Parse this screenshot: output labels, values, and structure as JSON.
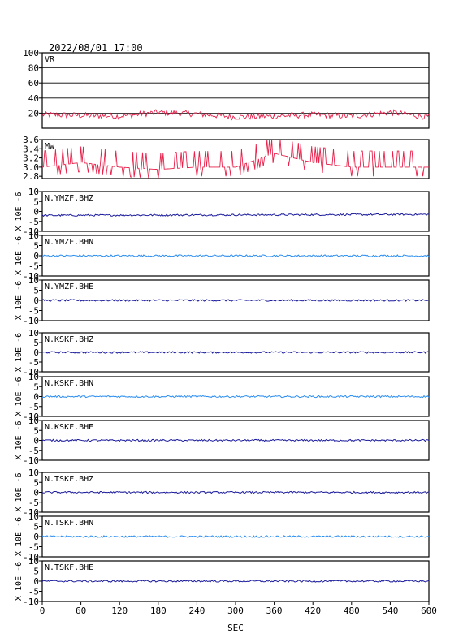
{
  "title": "2022/08/01 17:00",
  "xlabel": "SEC",
  "x_ticks": [
    "0",
    "60",
    "120",
    "180",
    "240",
    "300",
    "360",
    "420",
    "480",
    "540",
    "600"
  ],
  "colors": {
    "vr": "#e8204a",
    "mw": "#e8204a",
    "dark_blue": "#1a1a9c",
    "light_blue": "#2a8cf0",
    "frame": "#000000"
  },
  "chart_data": [
    {
      "type": "line",
      "label": "VR",
      "ylim": [
        0,
        100
      ],
      "y_ticks": [
        "20",
        "40",
        "60",
        "80",
        "100"
      ],
      "grid": true,
      "x": [
        0,
        60,
        120,
        180,
        240,
        300,
        360,
        420,
        480,
        540,
        600
      ],
      "values": [
        18,
        17,
        16,
        21,
        19,
        15,
        16,
        18,
        16,
        21,
        15
      ]
    },
    {
      "type": "line",
      "label": "Mw",
      "ylim": [
        2.75,
        3.6
      ],
      "y_ticks": [
        "2.8",
        "3.0",
        "3.2",
        "3.4",
        "3.6"
      ],
      "x": [
        0,
        60,
        120,
        180,
        240,
        300,
        360,
        420,
        480,
        540,
        600
      ],
      "values": [
        3.0,
        3.1,
        3.0,
        2.95,
        3.0,
        3.0,
        3.3,
        3.1,
        3.0,
        3.0,
        3.0
      ]
    },
    {
      "type": "line",
      "label": "N.YMZF.BHZ",
      "ylabel": "X 10E -6",
      "ylim": [
        -10,
        10
      ],
      "y_ticks": [
        "-10",
        "-5",
        "0",
        "5",
        "10"
      ],
      "color": "dark_blue",
      "x": [
        0,
        600
      ],
      "values": [
        -2.0,
        -1.5
      ]
    },
    {
      "type": "line",
      "label": "N.YMZF.BHN",
      "ylabel": "X 10E -6",
      "ylim": [
        -10,
        10
      ],
      "y_ticks": [
        "-10",
        "-5",
        "0",
        "5",
        "10"
      ],
      "color": "light_blue",
      "x": [
        0,
        600
      ],
      "values": [
        0,
        0
      ]
    },
    {
      "type": "line",
      "label": "N.YMZF.BHE",
      "ylabel": "X 10E -6",
      "ylim": [
        -10,
        10
      ],
      "y_ticks": [
        "-10",
        "-5",
        "0",
        "5",
        "10"
      ],
      "color": "dark_blue",
      "x": [
        0,
        600
      ],
      "values": [
        0,
        0
      ]
    },
    {
      "type": "line",
      "label": "N.KSKF.BHZ",
      "ylabel": "X 10E -6",
      "ylim": [
        -10,
        10
      ],
      "y_ticks": [
        "-10",
        "-5",
        "0",
        "5",
        "10"
      ],
      "color": "dark_blue",
      "x": [
        0,
        600
      ],
      "values": [
        0,
        0
      ]
    },
    {
      "type": "line",
      "label": "N.KSKF.BHN",
      "ylabel": "X 10E -6",
      "ylim": [
        -10,
        10
      ],
      "y_ticks": [
        "-10",
        "-5",
        "0",
        "5",
        "10"
      ],
      "color": "light_blue",
      "x": [
        0,
        600
      ],
      "values": [
        0,
        0
      ]
    },
    {
      "type": "line",
      "label": "N.KSKF.BHE",
      "ylabel": "X 10E -6",
      "ylim": [
        -10,
        10
      ],
      "y_ticks": [
        "-10",
        "-5",
        "0",
        "5",
        "10"
      ],
      "color": "dark_blue",
      "x": [
        0,
        600
      ],
      "values": [
        0,
        0
      ]
    },
    {
      "type": "line",
      "label": "N.TSKF.BHZ",
      "ylabel": "X 10E -6",
      "ylim": [
        -10,
        10
      ],
      "y_ticks": [
        "-10",
        "-5",
        "0",
        "5",
        "10"
      ],
      "color": "dark_blue",
      "x": [
        0,
        600
      ],
      "values": [
        0,
        0
      ]
    },
    {
      "type": "line",
      "label": "N.TSKF.BHN",
      "ylabel": "X 10E -6",
      "ylim": [
        -10,
        10
      ],
      "y_ticks": [
        "-10",
        "-5",
        "0",
        "5",
        "10"
      ],
      "color": "light_blue",
      "x": [
        0,
        600
      ],
      "values": [
        0,
        0
      ]
    },
    {
      "type": "line",
      "label": "N.TSKF.BHE",
      "ylabel": "X 10E -6",
      "ylim": [
        -10,
        10
      ],
      "y_ticks": [
        "-10",
        "-5",
        "0",
        "5",
        "10"
      ],
      "color": "dark_blue",
      "x": [
        0,
        600
      ],
      "values": [
        0,
        0
      ]
    }
  ]
}
